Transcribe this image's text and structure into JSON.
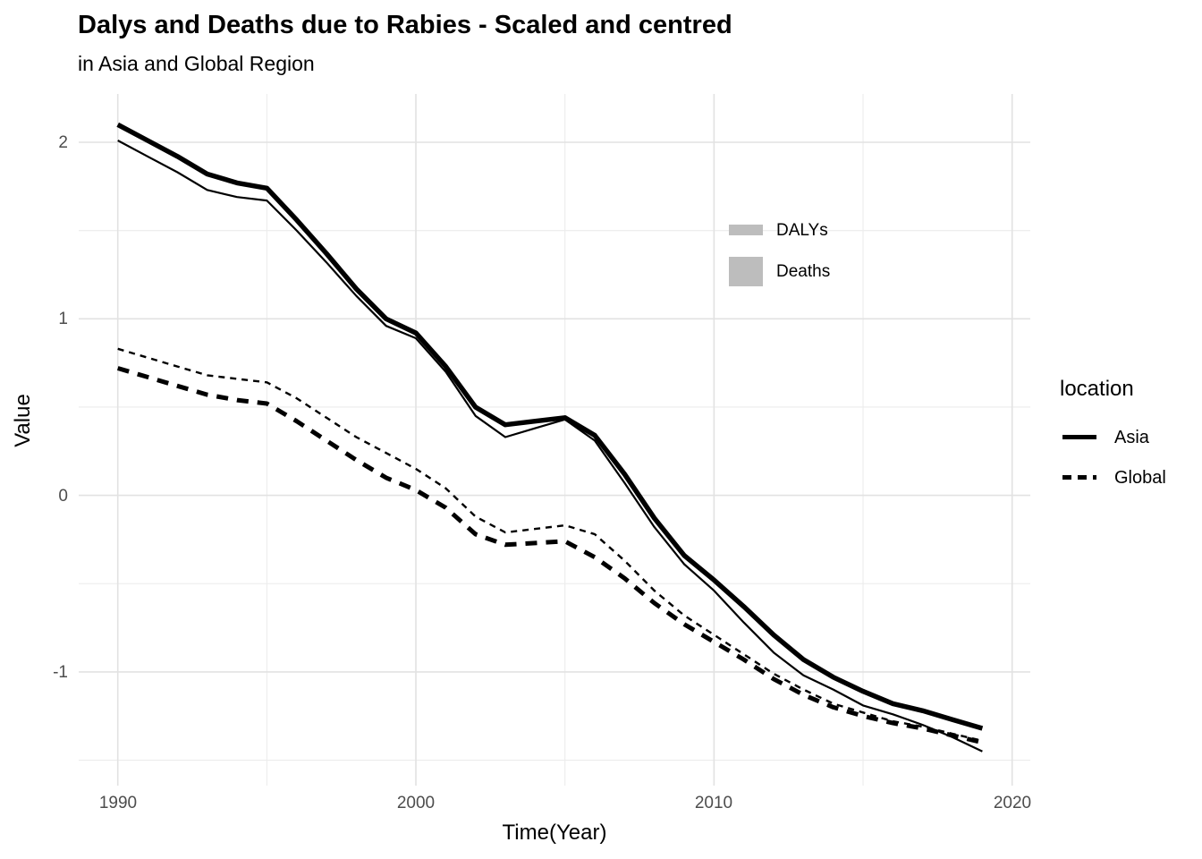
{
  "title": "Dalys and Deaths due to Rabies - Scaled and centred",
  "subtitle": "in Asia and Global Region",
  "colors": {
    "line": "#000000",
    "grid_major": "#e2e2e2",
    "grid_minor": "#ececec",
    "legend_key_gray": "#bdbdbd",
    "tick_label": "#4d4d4d",
    "background": "#ffffff"
  },
  "size_legend": {
    "items": [
      {
        "label": "DALYs",
        "key": "thin-gray-bar"
      },
      {
        "label": "Deaths",
        "key": "thick-gray-square"
      }
    ]
  },
  "location_legend": {
    "title": "location",
    "items": [
      {
        "label": "Asia",
        "style": "solid"
      },
      {
        "label": "Global",
        "style": "dashed"
      }
    ]
  },
  "chart_data": {
    "type": "line",
    "title": "Dalys and Deaths due to Rabies - Scaled and centred",
    "subtitle": "in Asia and Global Region",
    "xlabel": "Time(Year)",
    "ylabel": "Value",
    "xlim": [
      1988.7,
      2020.6
    ],
    "ylim": [
      -1.65,
      2.27
    ],
    "xticks": [
      1990,
      2000,
      2010,
      2020
    ],
    "yticks": [
      2,
      1,
      0,
      -1
    ],
    "xtick_labels": [
      "1990",
      "2000",
      "2010",
      "2020"
    ],
    "ytick_labels": [
      "2",
      "1",
      "0",
      "-1"
    ],
    "grid": {
      "x_major": [
        1990,
        2000,
        2010,
        2020
      ],
      "x_minor": [
        1995,
        2005,
        2015
      ],
      "y_major": [
        2,
        1,
        0,
        -1
      ],
      "y_minor": [
        1.5,
        0.5,
        -0.5,
        -1.5
      ]
    },
    "legend_position": "right",
    "x": [
      1990,
      1991,
      1992,
      1993,
      1994,
      1995,
      1996,
      1997,
      1998,
      1999,
      2000,
      2001,
      2002,
      2003,
      2004,
      2005,
      2006,
      2007,
      2008,
      2009,
      2010,
      2011,
      2012,
      2013,
      2014,
      2015,
      2016,
      2017,
      2018,
      2019
    ],
    "series": [
      {
        "id": "asia-dalys",
        "name": "Asia DALYs",
        "location": "Asia",
        "measure": "DALYs",
        "style": "solid",
        "width": 2.2,
        "dasharray": "",
        "values": [
          2.01,
          1.92,
          1.83,
          1.73,
          1.69,
          1.67,
          1.5,
          1.32,
          1.13,
          0.96,
          0.89,
          0.7,
          0.45,
          0.33,
          0.38,
          0.43,
          0.31,
          0.07,
          -0.18,
          -0.39,
          -0.54,
          -0.72,
          -0.89,
          -1.02,
          -1.1,
          -1.19,
          -1.24,
          -1.3,
          -1.37,
          -1.45
        ]
      },
      {
        "id": "global-dalys",
        "name": "Global DALYs",
        "location": "Global",
        "measure": "DALYs",
        "style": "dashed",
        "width": 2.4,
        "dasharray": "7 6",
        "values": [
          0.83,
          0.78,
          0.73,
          0.68,
          0.66,
          0.64,
          0.55,
          0.44,
          0.33,
          0.24,
          0.15,
          0.04,
          -0.12,
          -0.21,
          -0.19,
          -0.17,
          -0.22,
          -0.37,
          -0.54,
          -0.68,
          -0.79,
          -0.9,
          -1.01,
          -1.1,
          -1.18,
          -1.23,
          -1.28,
          -1.31,
          -1.35,
          -1.39
        ]
      },
      {
        "id": "global-deaths",
        "name": "Global Deaths",
        "location": "Global",
        "measure": "Deaths",
        "style": "dashed",
        "width": 5,
        "dasharray": "13 10",
        "values": [
          0.72,
          0.67,
          0.62,
          0.57,
          0.54,
          0.52,
          0.42,
          0.31,
          0.2,
          0.1,
          0.03,
          -0.07,
          -0.22,
          -0.28,
          -0.27,
          -0.26,
          -0.35,
          -0.47,
          -0.61,
          -0.73,
          -0.83,
          -0.93,
          -1.04,
          -1.13,
          -1.2,
          -1.25,
          -1.29,
          -1.32,
          -1.36,
          -1.4
        ]
      },
      {
        "id": "asia-deaths",
        "name": "Asia Deaths",
        "location": "Asia",
        "measure": "Deaths",
        "style": "solid",
        "width": 5.5,
        "dasharray": "",
        "values": [
          2.1,
          2.01,
          1.92,
          1.82,
          1.77,
          1.74,
          1.56,
          1.37,
          1.17,
          1.0,
          0.92,
          0.73,
          0.5,
          0.4,
          0.42,
          0.44,
          0.34,
          0.12,
          -0.13,
          -0.34,
          -0.48,
          -0.63,
          -0.79,
          -0.93,
          -1.03,
          -1.11,
          -1.18,
          -1.22,
          -1.27,
          -1.32
        ]
      }
    ]
  }
}
